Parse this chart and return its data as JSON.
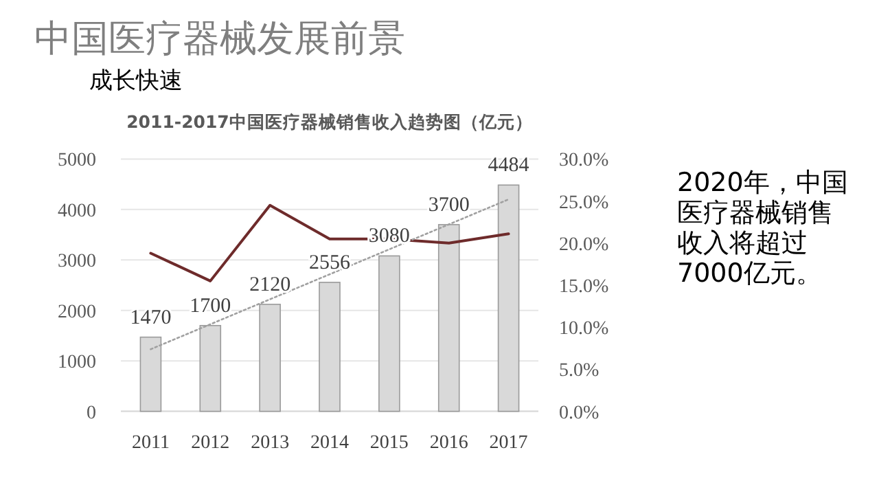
{
  "chart_data": {
    "type": "bar",
    "title": "中国医疗器械发展前景",
    "subtitle": "成长快速",
    "annotations": [
      "2011-2017中国医疗器械销售收入趋势图（亿元）",
      "2020年，中国医疗器械销售收入将超过7000亿元。"
    ],
    "categories": [
      "2011",
      "2012",
      "2013",
      "2014",
      "2015",
      "2016",
      "2017"
    ],
    "series": [
      {
        "color": "#d9d9d9",
        "values": [
          1470,
          1700,
          2120,
          2556,
          3080,
          3700,
          4484
        ],
        "value_labels": [
          "1470",
          "1700",
          "2120",
          "2556",
          "3080",
          "3700",
          "4484"
        ]
      },
      {
        "type": "line",
        "color": "#6e2b2b",
        "axis": "y2",
        "values": [
          18.8,
          15.5,
          24.5,
          20.5,
          20.5,
          20.0,
          21.1
        ]
      },
      {
        "type": "line",
        "color": "#a0a0a0",
        "line_style": "dotted",
        "values": [
          1230,
          1725,
          2220,
          2715,
          3210,
          3705,
          4200
        ]
      }
    ],
    "ylim": [
      0,
      5000
    ],
    "yticks": [
      0,
      1000,
      2000,
      3000,
      4000,
      5000
    ],
    "y2lim": [
      0,
      30
    ],
    "y2ticks": [
      {
        "value": 0,
        "label": "0.0%"
      },
      {
        "value": 5,
        "label": "5.0%"
      },
      {
        "value": 10,
        "label": "10.0%"
      },
      {
        "value": 15,
        "label": "15.0%"
      },
      {
        "value": 20,
        "label": "20.0%"
      },
      {
        "value": 25,
        "label": "25.0%"
      },
      {
        "value": 30,
        "label": "30.0%"
      }
    ],
    "grid": "y"
  }
}
